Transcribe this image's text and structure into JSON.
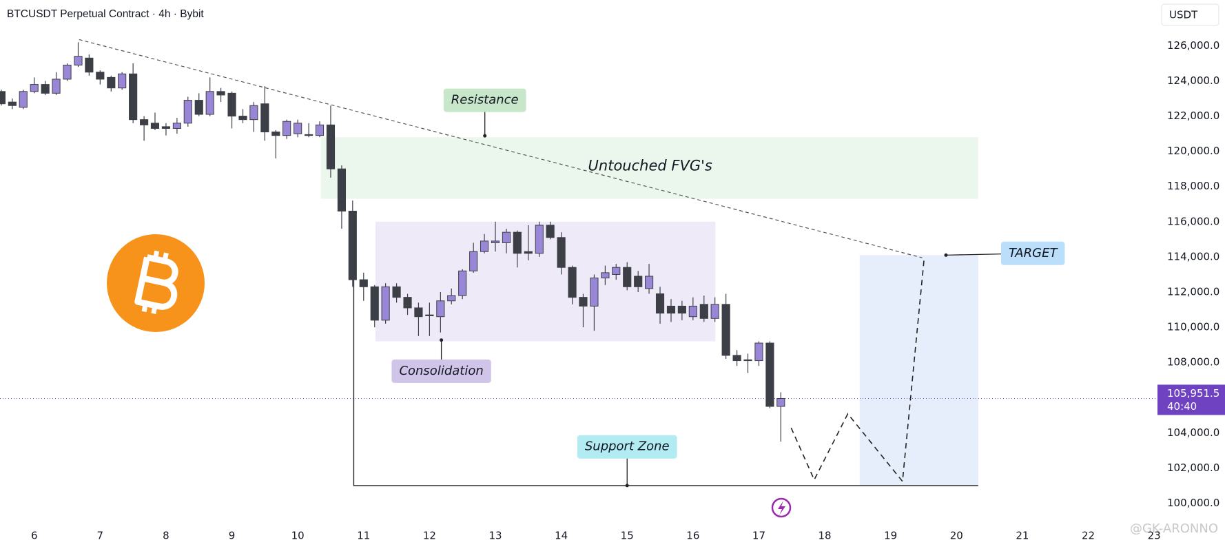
{
  "chart_data": {
    "type": "candlestick",
    "title": "BTCUSDT Perpetual Contract · 4h · Bybit",
    "currency": "USDT",
    "watermark": "@GK-ARONNO",
    "up_color": "#9a86d6",
    "down_color": "#3d3f46",
    "x": [
      5.5,
      5.667,
      5.833,
      6,
      6.167,
      6.333,
      6.5,
      6.667,
      6.833,
      7,
      7.167,
      7.333,
      7.5,
      7.667,
      7.833,
      8,
      8.167,
      8.333,
      8.5,
      8.667,
      8.833,
      9,
      9.167,
      9.333,
      9.5,
      9.667,
      9.833,
      10,
      10.167,
      10.333,
      10.5,
      10.667,
      10.833,
      11,
      11.167,
      11.333,
      11.5,
      11.667,
      11.833,
      12,
      12.167,
      12.333,
      12.5,
      12.667,
      12.833,
      13,
      13.167,
      13.333,
      13.5,
      13.667,
      13.833,
      14,
      14.167,
      14.333,
      14.5,
      14.667,
      14.833,
      15,
      15.167,
      15.333,
      15.5,
      15.667,
      15.833,
      16,
      16.167,
      16.333,
      16.5,
      16.667,
      16.833,
      17,
      17.167,
      17.333
    ],
    "open": [
      123400,
      122800,
      122500,
      123400,
      123800,
      123300,
      124100,
      124900,
      125300,
      124500,
      124200,
      123600,
      124400,
      121800,
      121600,
      121400,
      121300,
      121600,
      122900,
      122100,
      123400,
      123300,
      122000,
      121800,
      122700,
      121100,
      120900,
      121000,
      120950,
      120900,
      121500,
      119000,
      116600,
      112700,
      112300,
      110400,
      112300,
      111700,
      111100,
      110700,
      110600,
      111500,
      111800,
      113200,
      114300,
      114800,
      114800,
      115400,
      114300,
      114200,
      115800,
      115100,
      113400,
      111700,
      111200,
      112800,
      113000,
      113400,
      112900,
      112200,
      111900,
      111200,
      111200,
      110600,
      111300,
      110500,
      111300,
      108400,
      108150,
      108100,
      109100,
      105500
    ],
    "high": [
      123500,
      123000,
      123500,
      124200,
      124000,
      124500,
      125000,
      126200,
      125500,
      124600,
      124300,
      124500,
      125000,
      122000,
      122200,
      121600,
      121900,
      123100,
      123300,
      124200,
      123600,
      123400,
      122400,
      122800,
      123700,
      121200,
      121800,
      121800,
      121600,
      121700,
      122600,
      119200,
      117200,
      113100,
      112400,
      112500,
      112500,
      111900,
      111400,
      111400,
      112000,
      112200,
      113300,
      114800,
      115300,
      116000,
      115600,
      115500,
      115800,
      116000,
      116000,
      115400,
      113500,
      111900,
      113000,
      113500,
      113600,
      113700,
      113200,
      113600,
      112300,
      111600,
      111500,
      111700,
      111800,
      111700,
      111900,
      108700,
      108500,
      109200,
      109200,
      106300
    ],
    "low": [
      122600,
      122400,
      122400,
      123300,
      123200,
      123200,
      124000,
      124800,
      124300,
      123800,
      123400,
      123500,
      121600,
      120600,
      121200,
      120900,
      121000,
      121400,
      122000,
      122000,
      122800,
      121300,
      121600,
      121100,
      120600,
      119600,
      120700,
      120800,
      120800,
      120800,
      118500,
      115600,
      112300,
      111500,
      110000,
      110200,
      111400,
      110700,
      109500,
      109500,
      109700,
      111300,
      111600,
      113100,
      114200,
      114300,
      114200,
      113400,
      113800,
      114000,
      115000,
      113000,
      111300,
      110000,
      109800,
      112400,
      112700,
      112100,
      112000,
      111900,
      110200,
      110300,
      110400,
      110400,
      110300,
      110300,
      108200,
      107800,
      107400,
      107800,
      105400,
      103500
    ],
    "close": [
      122700,
      122600,
      123400,
      123800,
      123300,
      124100,
      124900,
      125400,
      124500,
      124100,
      123600,
      124400,
      121800,
      121500,
      121300,
      121300,
      121600,
      122900,
      122100,
      123400,
      123200,
      122000,
      121800,
      122600,
      121100,
      120900,
      121700,
      121600,
      120900,
      121500,
      119000,
      116600,
      112700,
      112300,
      110400,
      112300,
      111700,
      111100,
      110600,
      110650,
      111500,
      111800,
      113200,
      114300,
      114900,
      114900,
      115400,
      114200,
      114200,
      115800,
      115100,
      113400,
      111700,
      111200,
      112800,
      113100,
      113400,
      112300,
      112300,
      112900,
      110800,
      110800,
      110800,
      111200,
      110500,
      111300,
      108400,
      108100,
      108100,
      109100,
      105500,
      105950
    ],
    "xlim": [
      5.48,
      23.03
    ],
    "xticks": [
      6,
      7,
      8,
      9,
      10,
      11,
      12,
      13,
      14,
      15,
      16,
      17,
      18,
      19,
      20,
      21,
      22,
      23
    ],
    "ylim": [
      99000,
      128600
    ],
    "yticks": [
      {
        "value": 100000,
        "label": "100,000.0"
      },
      {
        "value": 102000,
        "label": "102,000.0"
      },
      {
        "value": 104000,
        "label": "104,000.0"
      },
      {
        "value": 106000,
        "label": "106,000.0"
      },
      {
        "value": 108000,
        "label": "108,000.0"
      },
      {
        "value": 110000,
        "label": "110,000.0"
      },
      {
        "value": 112000,
        "label": "112,000.0"
      },
      {
        "value": 114000,
        "label": "114,000.0"
      },
      {
        "value": 116000,
        "label": "116,000.0"
      },
      {
        "value": 118000,
        "label": "118,000.0"
      },
      {
        "value": 120000,
        "label": "120,000.0"
      },
      {
        "value": 122000,
        "label": "122,000.0"
      },
      {
        "value": 124000,
        "label": "124,000.0"
      },
      {
        "value": 126000,
        "label": "126,000.0"
      }
    ],
    "grid": false,
    "last_price": {
      "value": 105951.5,
      "label": "105,951.5",
      "countdown": "40:40"
    },
    "zones": [
      {
        "x": [
          10.35,
          20.33
        ],
        "y": [
          117300,
          120800
        ],
        "color": "#ebf6ec"
      },
      {
        "x": [
          11.18,
          16.34
        ],
        "y": [
          109200,
          116000
        ],
        "color": "#eeeaf8"
      },
      {
        "x": [
          18.53,
          20.33
        ],
        "y": [
          101000,
          114100
        ],
        "color": "#e6edfb"
      }
    ],
    "trendline": {
      "x": [
        6.68,
        19.48
      ],
      "y": [
        126350,
        113950
      ]
    },
    "projection": {
      "x": [
        17.49,
        17.84,
        18.35,
        19.18,
        19.51
      ],
      "y": [
        104280,
        101330,
        105080,
        101240,
        113950
      ]
    },
    "support": {
      "x": [
        10.85,
        10.85,
        20.33
      ],
      "y": [
        112700,
        101000,
        101000
      ]
    },
    "labels": [
      {
        "text": "Resistance",
        "x": 12.84,
        "y": 122900,
        "color": "#c8e6c9",
        "point": [
          12.84,
          120880
        ]
      },
      {
        "text": "Consolidation",
        "x": 12.18,
        "y": 107500,
        "color": "#d1c4e9",
        "point": [
          12.18,
          109270
        ]
      },
      {
        "text": "Support Zone",
        "x": 15.0,
        "y": 103200,
        "color": "#b2ebf2",
        "point": [
          15.0,
          101000
        ]
      },
      {
        "text": "TARGET",
        "x": 21.16,
        "y": 114200,
        "color": "#bbdefb",
        "point": [
          19.84,
          114100
        ]
      },
      {
        "text": "Untouched FVG's",
        "x": 15.35,
        "y": 119150
      }
    ]
  }
}
